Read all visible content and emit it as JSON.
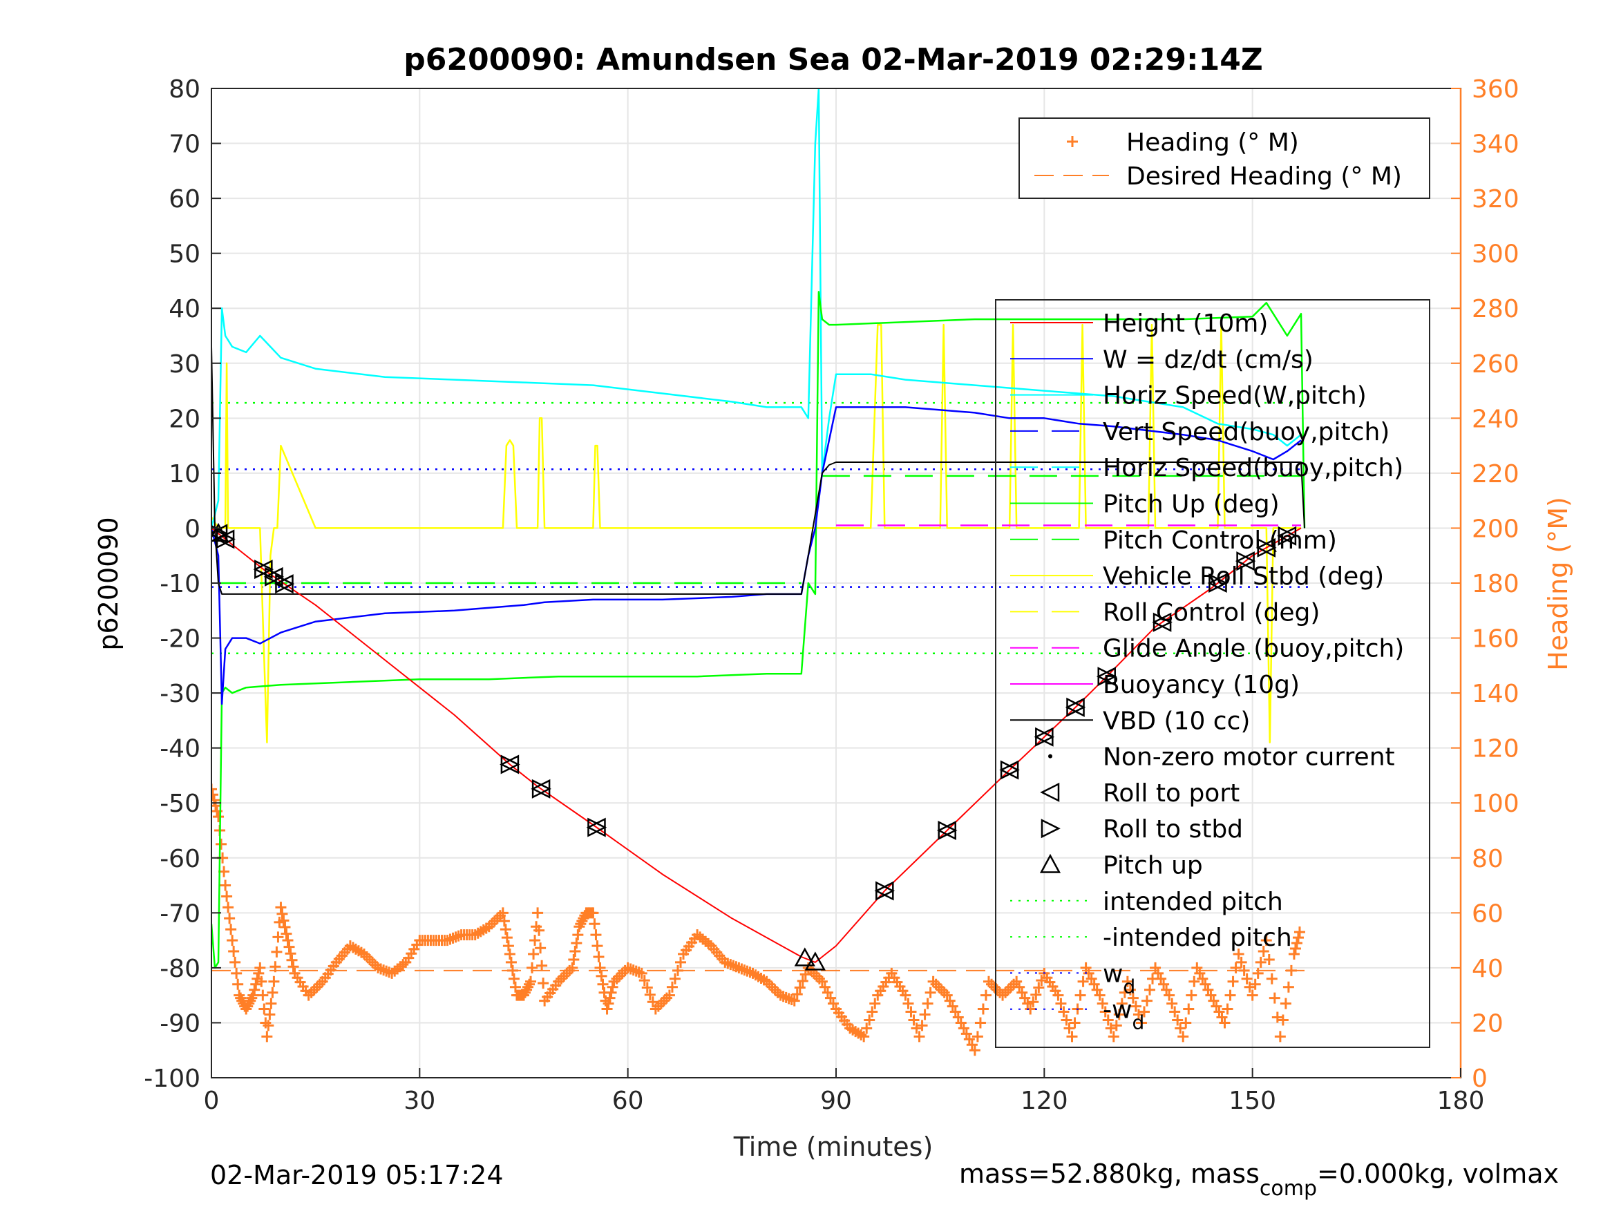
{
  "colors": {
    "height": "#ff0000",
    "w": "#0000ff",
    "horiz_speed": "#00ffff",
    "pitch": "#00ff00",
    "roll": "#ffff00",
    "glide": "#ff00ff",
    "vbd": "#000000",
    "heading": "#ff7f27",
    "grid": "#e6e6e6"
  },
  "chart_data": {
    "type": "line",
    "title": "p6200090: Amundsen Sea 02-Mar-2019 02:29:14Z",
    "xlabel": "Time (minutes)",
    "ylabel_left": "p6200090",
    "ylabel_right": "Heading (°M)",
    "xlim": [
      0,
      180
    ],
    "ylim_left": [
      -100,
      80
    ],
    "ylim_right": [
      0,
      360
    ],
    "x_ticks": [
      "0",
      "30",
      "60",
      "90",
      "120",
      "150",
      "180"
    ],
    "y_ticks_left": [
      "80",
      "70",
      "60",
      "50",
      "40",
      "30",
      "20",
      "10",
      "0",
      "-10",
      "-20",
      "-30",
      "-40",
      "-50",
      "-60",
      "-70",
      "-80",
      "-90",
      "-100"
    ],
    "y_ticks_right": [
      "360",
      "340",
      "320",
      "300",
      "280",
      "260",
      "240",
      "220",
      "200",
      "180",
      "160",
      "140",
      "120",
      "100",
      "80",
      "60",
      "40",
      "20",
      "0"
    ],
    "grid": true,
    "footer_left": "02-Mar-2019 05:17:24",
    "footer_right": {
      "prefix": "mass=52.880kg, mass",
      "sub": "comp",
      "suffix": "=0.000kg, volmax"
    },
    "heading_legend": {
      "placement": "top-right",
      "entries": [
        "Heading (° M)",
        "Desired Heading (° M)"
      ]
    },
    "main_legend": {
      "placement": "right",
      "entries": [
        "Height (10m)",
        "W = dz/dt (cm/s)",
        "Horiz Speed(W,pitch)",
        "Vert Speed(buoy,pitch)",
        "Horiz Speed(buoy,pitch)",
        "Pitch Up (deg)",
        "Pitch Control (mm)",
        "Vehicle Roll Stbd (deg)",
        "Roll Control (deg)",
        "Glide Angle (buoy,pitch)",
        "Buoyancy (10g)",
        "VBD (10 cc)",
        "Non-zero motor current",
        "Roll to port",
        "Roll to stbd",
        "Pitch up",
        "intended pitch",
        "-intended pitch",
        "w",
        "-w"
      ],
      "entry_subscripts": {
        "18": "d",
        "19": "d"
      }
    },
    "series": [
      {
        "name": "Height (10m)",
        "axis": "left",
        "x": [
          0,
          2,
          8,
          15,
          25,
          35,
          43,
          47,
          55,
          65,
          75,
          85,
          87,
          90,
          97,
          106,
          115,
          120,
          125,
          129,
          136,
          144,
          150,
          157
        ],
        "y": [
          0,
          -2,
          -8,
          -14,
          -24,
          -34,
          -43,
          -47,
          -54,
          -63,
          -71,
          -78,
          -79,
          -76,
          -66,
          -55,
          -44,
          -38,
          -32,
          -27,
          -18,
          -11,
          -5,
          0
        ]
      },
      {
        "name": "W = dz/dt (cm/s)",
        "axis": "left",
        "x": [
          0,
          1,
          1.5,
          2,
          3,
          5,
          7,
          10,
          15,
          25,
          35,
          45,
          48,
          55,
          65,
          75,
          80,
          85,
          86,
          87,
          88,
          90,
          95,
          100,
          110,
          115,
          120,
          125,
          130,
          140,
          145,
          150,
          153,
          155,
          157
        ],
        "y": [
          0,
          -5,
          -32,
          -22,
          -20,
          -20,
          -21,
          -19,
          -17,
          -15.5,
          -15,
          -14,
          -13.5,
          -13,
          -13,
          -12.5,
          -12,
          -12,
          -5,
          0,
          10,
          22,
          22,
          22,
          21,
          20,
          20,
          19,
          18.5,
          17,
          16,
          14,
          12.5,
          14,
          16
        ]
      },
      {
        "name": "Horiz Speed(W,pitch)",
        "axis": "left",
        "x": [
          0,
          1,
          1.5,
          2,
          3,
          5,
          7,
          10,
          15,
          25,
          35,
          45,
          55,
          65,
          75,
          80,
          85,
          86,
          87,
          87.5,
          88,
          89,
          90,
          95,
          100,
          110,
          120,
          130,
          140,
          145,
          150,
          153,
          155,
          157
        ],
        "y": [
          0,
          5,
          40,
          35,
          33,
          32,
          35,
          31,
          29,
          27.5,
          27,
          26.5,
          26,
          24.5,
          23,
          22,
          22,
          20,
          70,
          80,
          10,
          20,
          28,
          28,
          27,
          26,
          25,
          24,
          22,
          19,
          18,
          17,
          15,
          17
        ]
      },
      {
        "name": "Pitch Up (deg)",
        "axis": "left",
        "x": [
          0,
          0.5,
          1,
          1.5,
          2,
          3,
          5,
          10,
          20,
          30,
          40,
          50,
          60,
          70,
          80,
          85,
          86,
          87,
          87.5,
          88,
          89,
          90,
          100,
          110,
          120,
          130,
          140,
          150,
          152,
          155,
          157,
          157.5
        ],
        "y": [
          -72,
          -80,
          -79,
          -30,
          -29,
          -30,
          -29,
          -28.5,
          -28,
          -27.5,
          -27.5,
          -27,
          -27,
          -27,
          -26.5,
          -26.5,
          -10,
          -12,
          43,
          38,
          37,
          37,
          37.5,
          38,
          38,
          38,
          38,
          38.5,
          41,
          35,
          39,
          0
        ]
      },
      {
        "name": "Vehicle Roll Stbd (deg)",
        "axis": "left",
        "x": [
          0,
          1,
          2,
          2.2,
          2.4,
          3,
          7,
          7.5,
          8,
          8.5,
          9,
          9.5,
          10,
          15,
          42,
          42.5,
          43,
          43.5,
          44,
          47,
          47.3,
          47.6,
          48,
          55,
          55.3,
          55.6,
          56,
          85,
          86,
          87,
          95,
          96,
          96.5,
          97,
          105,
          105.5,
          106,
          115,
          115.5,
          116,
          125,
          125.5,
          126,
          135,
          135.5,
          136,
          145,
          145.5,
          146,
          152,
          152.5,
          153,
          157
        ],
        "y": [
          2,
          0,
          0,
          30,
          0,
          0,
          0,
          -20,
          -39,
          -5,
          0,
          0,
          15,
          0,
          0,
          15,
          16,
          15,
          0,
          0,
          20,
          20,
          0,
          0,
          15,
          15,
          0,
          0,
          0,
          0,
          0,
          37,
          37,
          0,
          0,
          37,
          0,
          0,
          37,
          0,
          0,
          37,
          0,
          0,
          37,
          0,
          0,
          37,
          0,
          0,
          -39,
          0,
          0
        ]
      },
      {
        "name": "VBD (10 cc)",
        "axis": "left",
        "x": [
          0,
          0.5,
          1,
          1.5,
          2,
          85,
          86,
          88,
          89,
          90,
          157,
          157.5
        ],
        "y": [
          33,
          0,
          -10,
          -12,
          -12,
          -12,
          -5,
          10,
          11.5,
          12,
          12,
          0
        ]
      },
      {
        "name": "Glide Angle (buoy,pitch)",
        "axis": "left",
        "x": [
          90,
          157
        ],
        "y": [
          0.5,
          0.5
        ]
      },
      {
        "name": "Pitch Control (mm)",
        "axis": "left",
        "x_neg": [
          1,
          85
        ],
        "y_neg": [
          -10,
          -10
        ],
        "x_pos": [
          88,
          157
        ],
        "y_pos": [
          9.5,
          9.5
        ]
      },
      {
        "name": "Heading (° M)",
        "axis": "right",
        "x": [
          0,
          1,
          2,
          3,
          4,
          5,
          6,
          7,
          8,
          9,
          10,
          11,
          12,
          14,
          16,
          18,
          20,
          22,
          24,
          26,
          28,
          30,
          32,
          34,
          36,
          38,
          40,
          42,
          43,
          44,
          45,
          46,
          47,
          48,
          50,
          52,
          53,
          54,
          55,
          56,
          57,
          58,
          60,
          62,
          64,
          66,
          68,
          70,
          72,
          74,
          76,
          78,
          80,
          82,
          84,
          86,
          88,
          90,
          92,
          94,
          96,
          98,
          100,
          102,
          104,
          106,
          108,
          110,
          112,
          114,
          116,
          118,
          120,
          122,
          124,
          126,
          128,
          130,
          132,
          134,
          136,
          138,
          140,
          142,
          144,
          146,
          148,
          150,
          152,
          154,
          156,
          157
        ],
        "y": [
          105,
          95,
          70,
          50,
          30,
          25,
          30,
          40,
          15,
          35,
          62,
          50,
          38,
          30,
          35,
          42,
          48,
          45,
          40,
          38,
          42,
          50,
          50,
          50,
          52,
          52,
          55,
          60,
          45,
          30,
          30,
          35,
          60,
          28,
          35,
          40,
          55,
          60,
          60,
          40,
          25,
          35,
          40,
          38,
          25,
          30,
          45,
          52,
          48,
          42,
          40,
          38,
          35,
          30,
          28,
          40,
          35,
          25,
          18,
          15,
          30,
          38,
          30,
          15,
          35,
          30,
          20,
          10,
          35,
          30,
          35,
          25,
          38,
          30,
          15,
          40,
          30,
          15,
          35,
          20,
          40,
          30,
          15,
          40,
          30,
          20,
          45,
          30,
          50,
          15,
          45,
          55
        ]
      },
      {
        "name": "Desired Heading (° M)",
        "axis": "right",
        "x": [
          0,
          158
        ],
        "y": [
          39,
          39
        ]
      }
    ],
    "reference_lines": [
      {
        "name": "intended pitch",
        "axis": "left",
        "y": 22.8
      },
      {
        "name": "-intended pitch",
        "axis": "left",
        "y": -22.8
      },
      {
        "name": "w_d",
        "axis": "left",
        "y": 10.7
      },
      {
        "name": "-w_d",
        "axis": "left",
        "y": -10.7
      }
    ],
    "markers": {
      "roll_pairs_x": [
        1,
        2,
        7.5,
        9,
        10.5,
        43,
        47.5,
        55.5,
        97,
        106,
        115,
        120,
        124.5,
        129,
        137,
        145,
        149,
        152,
        155
      ],
      "pitch_up_x": [
        1,
        85.5,
        87
      ]
    }
  }
}
